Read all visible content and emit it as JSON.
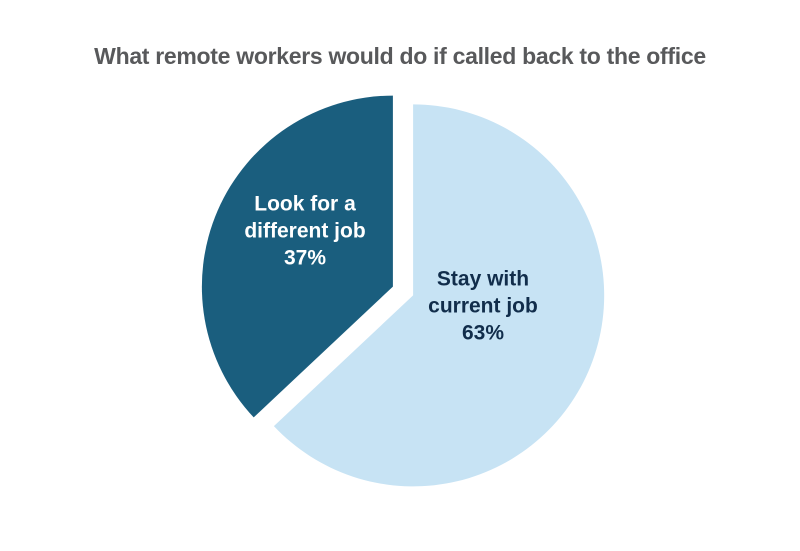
{
  "title": "What remote workers would do if called back to the office",
  "colors": {
    "background": "#ffffff",
    "title_text": "#58595b",
    "slice_dark": "#1a5e7e",
    "slice_light": "#c7e3f4"
  },
  "chart_data": {
    "type": "pie",
    "title": "What remote workers would do if called back to the office",
    "start_angle_deg": 0,
    "direction": "clockwise",
    "exploded": true,
    "legend": "none",
    "slices": [
      {
        "id": "stay",
        "label": "Stay with current job",
        "label_lines": [
          "Stay with",
          "current job"
        ],
        "pct_label": "63%",
        "value": 63,
        "color": "#c7e3f4",
        "text_color": "#112d4b"
      },
      {
        "id": "look",
        "label": "Look for a different job",
        "label_lines": [
          "Look for a",
          "different job"
        ],
        "pct_label": "37%",
        "value": 37,
        "color": "#1a5e7e",
        "text_color": "#ffffff"
      }
    ]
  }
}
